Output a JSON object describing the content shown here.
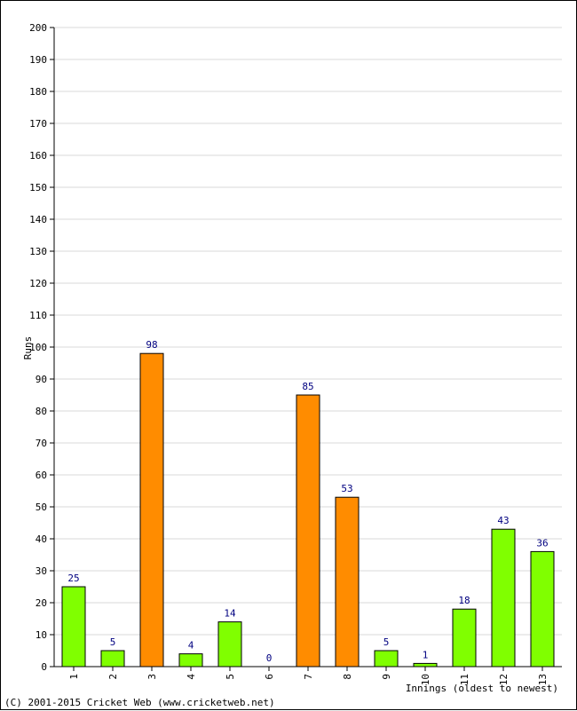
{
  "chart_data": {
    "type": "bar",
    "title": "",
    "ylabel": "Runs",
    "xlabel": "Innings (oldest to newest)",
    "ylim": [
      0,
      200
    ],
    "ytick_step": 10,
    "grid": true,
    "categories": [
      "1",
      "2",
      "3",
      "4",
      "5",
      "6",
      "7",
      "8",
      "9",
      "10",
      "11",
      "12",
      "13"
    ],
    "values": [
      25,
      5,
      98,
      4,
      14,
      0,
      85,
      53,
      5,
      1,
      18,
      43,
      36
    ],
    "highlight_threshold": 50,
    "colors": {
      "normal": "#80ff00",
      "highlight": "#ff8c00",
      "bar_stroke": "#000000",
      "grid": "#d8d8d8",
      "axis": "#000000",
      "data_label": "#000080"
    }
  },
  "footer": {
    "copyright": "(C) 2001-2015 Cricket Web (www.cricketweb.net)"
  }
}
